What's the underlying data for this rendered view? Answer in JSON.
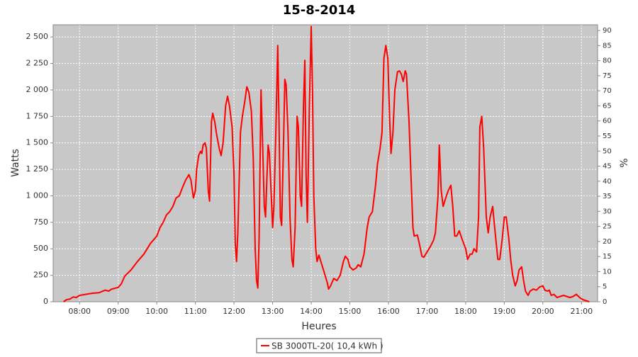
{
  "chart_data": {
    "type": "line",
    "title": "15-8-2014",
    "xlabel": "Heures",
    "ylabel": "Watts",
    "y2label": "%",
    "xlim": [
      "07:19",
      "21:25"
    ],
    "xticks": [
      "08:00",
      "09:00",
      "10:00",
      "11:00",
      "12:00",
      "13:00",
      "14:00",
      "15:00",
      "16:00",
      "17:00",
      "18:00",
      "19:00",
      "20:00",
      "21:00"
    ],
    "ylim": [
      0,
      2615
    ],
    "yticks": [
      0,
      250,
      500,
      750,
      {
        "value": 1000,
        "label": "1 000"
      },
      {
        "value": 1250,
        "label": "1 250"
      },
      {
        "value": 1500,
        "label": "1 500"
      },
      {
        "value": 1750,
        "label": "1 750"
      },
      {
        "value": 2000,
        "label": "2 000"
      },
      {
        "value": 2250,
        "label": "2 250"
      },
      {
        "value": 2500,
        "label": "2 500"
      }
    ],
    "y2lim": [
      0,
      91.9
    ],
    "y2ticks": [
      0,
      5,
      10,
      15,
      20,
      25,
      30,
      35,
      40,
      45,
      50,
      55,
      60,
      65,
      70,
      75,
      80,
      85,
      90
    ],
    "grid": true,
    "legend": "bottom",
    "x": [
      "07:35",
      "07:40",
      "07:45",
      "07:50",
      "07:55",
      "08:00",
      "08:10",
      "08:20",
      "08:30",
      "08:40",
      "08:45",
      "08:50",
      "09:00",
      "09:05",
      "09:10",
      "09:20",
      "09:30",
      "09:40",
      "09:50",
      "10:00",
      "10:05",
      "10:10",
      "10:15",
      "10:20",
      "10:25",
      "10:30",
      "10:35",
      "10:40",
      "10:45",
      "10:50",
      "10:53",
      "10:57",
      "11:00",
      "11:02",
      "11:05",
      "11:08",
      "11:10",
      "11:12",
      "11:15",
      "11:17",
      "11:20",
      "11:22",
      "11:25",
      "11:27",
      "11:30",
      "11:33",
      "11:37",
      "11:40",
      "11:43",
      "11:47",
      "11:50",
      "11:53",
      "11:57",
      "12:00",
      "12:02",
      "12:04",
      "12:06",
      "12:10",
      "12:13",
      "12:17",
      "12:20",
      "12:23",
      "12:27",
      "12:30",
      "12:33",
      "12:35",
      "12:37",
      "12:39",
      "12:42",
      "12:44",
      "12:47",
      "12:49",
      "12:53",
      "12:55",
      "12:58",
      "13:00",
      "13:02",
      "13:05",
      "13:08",
      "13:10",
      "13:12",
      "13:14",
      "13:17",
      "13:19",
      "13:21",
      "13:24",
      "13:27",
      "13:30",
      "13:32",
      "13:35",
      "13:38",
      "13:40",
      "13:43",
      "13:45",
      "13:48",
      "13:50",
      "13:52",
      "13:54",
      "13:57",
      "14:00",
      "14:02",
      "14:04",
      "14:07",
      "14:09",
      "14:12",
      "14:15",
      "14:20",
      "14:25",
      "14:27",
      "14:30",
      "14:35",
      "14:40",
      "14:45",
      "14:50",
      "14:53",
      "14:57",
      "15:00",
      "15:05",
      "15:10",
      "15:13",
      "15:17",
      "15:22",
      "15:27",
      "15:30",
      "15:35",
      "15:40",
      "15:43",
      "15:47",
      "15:50",
      "15:53",
      "15:56",
      "15:59",
      "16:02",
      "16:04",
      "16:07",
      "16:10",
      "16:14",
      "16:17",
      "16:20",
      "16:23",
      "16:26",
      "16:28",
      "16:32",
      "16:35",
      "16:38",
      "16:40",
      "16:45",
      "16:48",
      "16:52",
      "16:55",
      "17:00",
      "17:05",
      "17:10",
      "17:13",
      "17:17",
      "17:19",
      "17:22",
      "17:25",
      "17:30",
      "17:33",
      "17:37",
      "17:40",
      "17:43",
      "17:46",
      "17:50",
      "17:55",
      "18:00",
      "18:03",
      "18:07",
      "18:10",
      "18:13",
      "18:17",
      "18:20",
      "18:22",
      "18:25",
      "18:28",
      "18:32",
      "18:35",
      "18:38",
      "18:42",
      "18:45",
      "18:50",
      "18:53",
      "18:57",
      "19:00",
      "19:03",
      "19:07",
      "19:10",
      "19:13",
      "19:17",
      "19:20",
      "19:23",
      "19:27",
      "19:30",
      "19:33",
      "19:37",
      "19:40",
      "19:45",
      "19:50",
      "19:55",
      "20:00",
      "20:03",
      "20:07",
      "20:10",
      "20:13",
      "20:17",
      "20:22",
      "20:27",
      "20:32",
      "20:37",
      "20:42",
      "20:47",
      "20:52",
      "20:57",
      "21:02",
      "21:07",
      "21:12"
    ],
    "series": [
      {
        "name": "SB 3000TL-20( 10,4 kWh )",
        "color": "#ff0000",
        "values": [
          0,
          20,
          25,
          45,
          40,
          60,
          70,
          80,
          85,
          110,
          100,
          120,
          135,
          170,
          240,
          300,
          380,
          450,
          550,
          620,
          700,
          750,
          820,
          850,
          900,
          980,
          1000,
          1080,
          1150,
          1200,
          1150,
          980,
          1050,
          1250,
          1380,
          1420,
          1400,
          1480,
          1500,
          1450,
          1050,
          950,
          1700,
          1780,
          1700,
          1580,
          1450,
          1380,
          1500,
          1850,
          1940,
          1850,
          1650,
          1200,
          550,
          380,
          650,
          1600,
          1750,
          1900,
          2030,
          1980,
          1800,
          1350,
          500,
          200,
          130,
          600,
          2000,
          1600,
          900,
          800,
          1480,
          1400,
          1000,
          700,
          900,
          1600,
          2420,
          1700,
          800,
          720,
          1500,
          2100,
          2050,
          1600,
          800,
          400,
          330,
          700,
          1750,
          1650,
          1000,
          900,
          1850,
          2280,
          1200,
          750,
          1800,
          2600,
          2000,
          1000,
          500,
          380,
          440,
          380,
          280,
          180,
          120,
          150,
          220,
          200,
          250,
          380,
          430,
          400,
          330,
          300,
          320,
          350,
          330,
          450,
          700,
          800,
          850,
          1100,
          1300,
          1450,
          1600,
          2300,
          2420,
          2300,
          1700,
          1400,
          1600,
          2000,
          2170,
          2180,
          2150,
          2080,
          2180,
          2150,
          1700,
          1200,
          700,
          620,
          630,
          550,
          430,
          420,
          470,
          520,
          580,
          650,
          1000,
          1480,
          1050,
          900,
          1000,
          1050,
          1100,
          900,
          620,
          620,
          670,
          580,
          500,
          400,
          450,
          450,
          500,
          470,
          800,
          1650,
          1750,
          1450,
          800,
          650,
          800,
          900,
          700,
          400,
          400,
          600,
          800,
          800,
          600,
          400,
          250,
          150,
          200,
          300,
          330,
          200,
          100,
          60,
          100,
          120,
          110,
          140,
          150,
          110,
          100,
          110,
          60,
          70,
          40,
          50,
          60,
          50,
          40,
          50,
          70,
          40,
          20,
          10,
          0
        ]
      }
    ]
  }
}
